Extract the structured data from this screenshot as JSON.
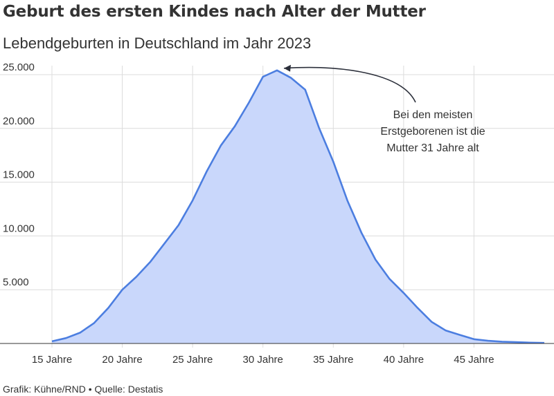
{
  "header": {
    "title": "Geburt des ersten Kindes nach Alter der Mutter",
    "subtitle": "Lebendgeburten in Deutschland im Jahr 2023"
  },
  "footer": {
    "grafik_label": "Grafik: Kühne/RND",
    "separator": "•",
    "source_label": "Quelle: Destatis"
  },
  "colors": {
    "line": "#4c7ee0",
    "fill": "#c9d7fb",
    "grid": "#dcdcdc",
    "text": "#333333"
  },
  "chart_data": {
    "type": "area",
    "title": "Geburt des ersten Kindes nach Alter der Mutter",
    "subtitle": "Lebendgeburten in Deutschland im Jahr 2023",
    "xlabel": "",
    "ylabel": "",
    "xlim": [
      15,
      50
    ],
    "ylim": [
      0,
      25000
    ],
    "grid": true,
    "x_ticks": [
      {
        "value": 15,
        "label": "15 Jahre"
      },
      {
        "value": 20,
        "label": "20 Jahre"
      },
      {
        "value": 25,
        "label": "25 Jahre"
      },
      {
        "value": 30,
        "label": "30 Jahre"
      },
      {
        "value": 35,
        "label": "35 Jahre"
      },
      {
        "value": 40,
        "label": "40 Jahre"
      },
      {
        "value": 45,
        "label": "45 Jahre"
      }
    ],
    "y_ticks": [
      {
        "value": 5000,
        "label": "5.000"
      },
      {
        "value": 10000,
        "label": "10.000"
      },
      {
        "value": 15000,
        "label": "15.000"
      },
      {
        "value": 20000,
        "label": "20.000"
      },
      {
        "value": 25000,
        "label": "25.000"
      }
    ],
    "x": [
      15,
      16,
      17,
      18,
      19,
      20,
      21,
      22,
      23,
      24,
      25,
      26,
      27,
      28,
      29,
      30,
      31,
      32,
      33,
      34,
      35,
      36,
      37,
      38,
      39,
      40,
      41,
      42,
      43,
      44,
      45,
      46,
      47,
      48,
      49,
      50
    ],
    "series": [
      {
        "values": [
          200,
          500,
          1000,
          1900,
          3300,
          5000,
          6200,
          7600,
          9300,
          11000,
          13300,
          16000,
          18400,
          20200,
          22400,
          24800,
          25400,
          24700,
          23600,
          20000,
          16900,
          13300,
          10300,
          7800,
          6000,
          4700,
          3300,
          2000,
          1200,
          800,
          400,
          250,
          170,
          120,
          80,
          50
        ]
      }
    ],
    "annotation": {
      "lines": [
        "Bei den meisten",
        "Erstgeborenen ist die",
        "Mutter 31 Jahre alt"
      ],
      "target_x": 31
    }
  }
}
